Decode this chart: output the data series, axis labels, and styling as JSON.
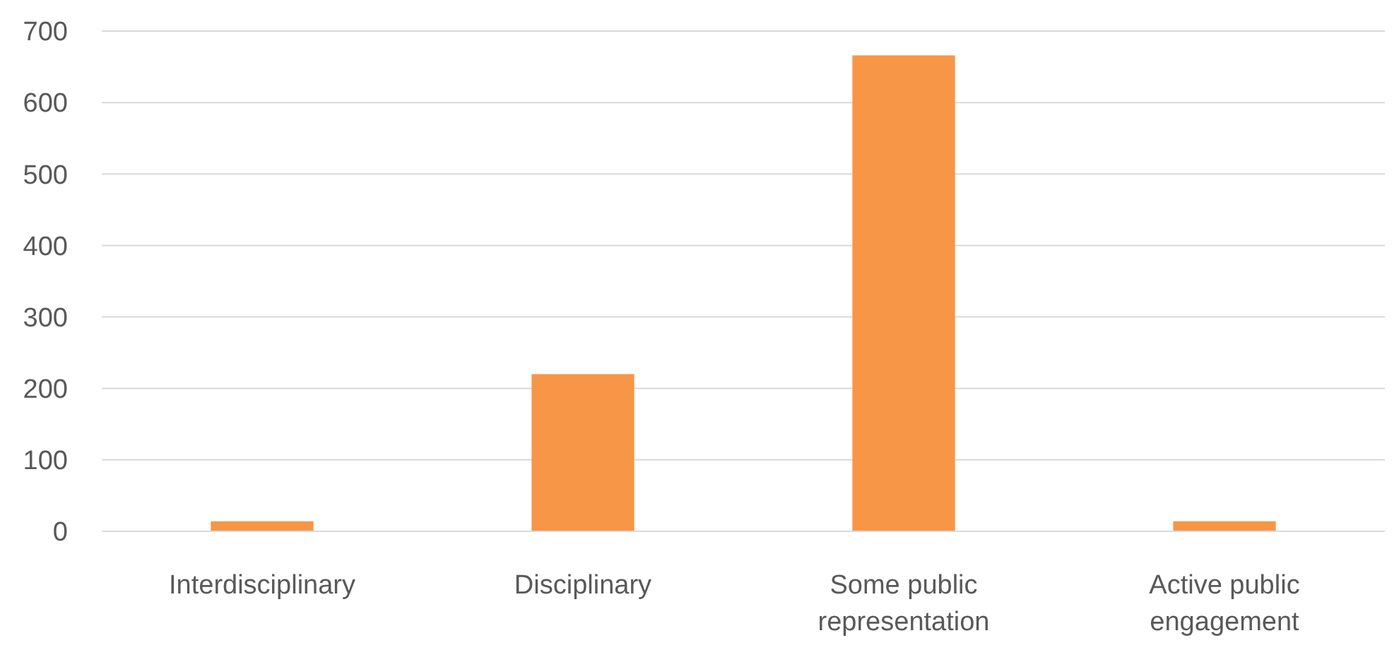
{
  "chart_data": {
    "type": "bar",
    "categories": [
      "Interdisciplinary",
      "Disciplinary",
      "Some public representation",
      "Active public engagement"
    ],
    "values": [
      14,
      220,
      666,
      14
    ],
    "color": "#f79646",
    "ylim": [
      0,
      700
    ],
    "yticks": [
      0,
      100,
      200,
      300,
      400,
      500,
      600,
      700
    ],
    "grid": "y"
  }
}
